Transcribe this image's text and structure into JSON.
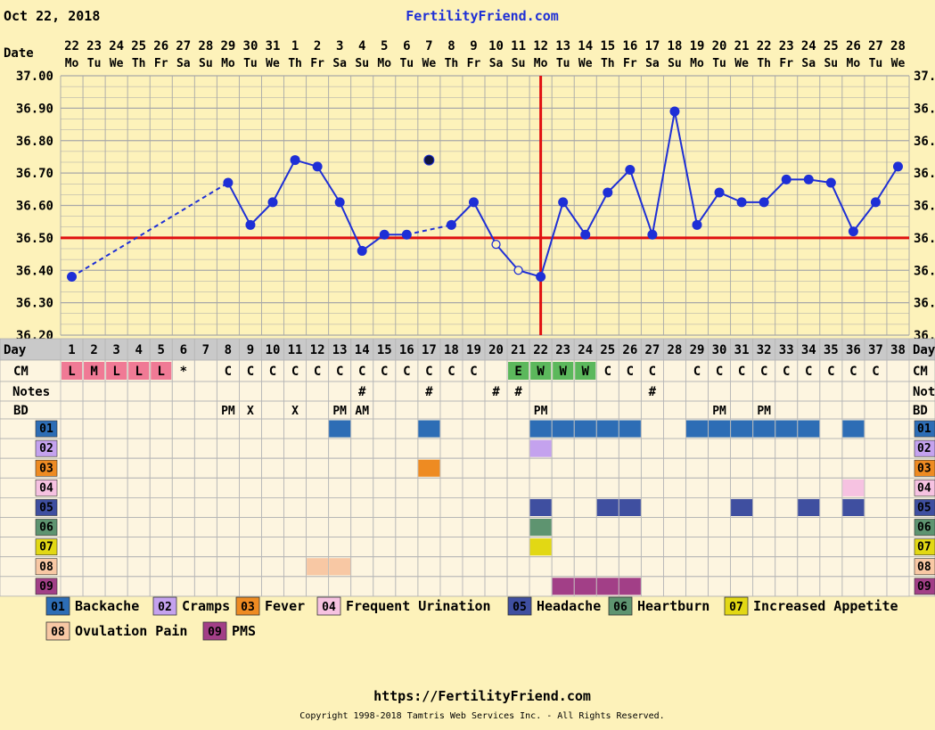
{
  "header": {
    "start_date": "Oct 22, 2018",
    "site_title": "FertilityFriend.com"
  },
  "footer": {
    "url": "https://FertilityFriend.com",
    "copyright": "Copyright 1998-2018 Tamtris Web Services Inc. - All Rights Reserved."
  },
  "row_labels": {
    "date": "Date",
    "day": "Day",
    "cm": "CM",
    "notes": "Notes",
    "bd": "BD"
  },
  "colors": {
    "background": "#fdf2ba",
    "temp_line": "#1e2fd6",
    "coverline": "#e01010",
    "ovulation_line": "#e01010",
    "grid": "#999999"
  },
  "chart_data": {
    "type": "line",
    "title": "",
    "ylabel": "",
    "ylim": [
      36.2,
      37.0
    ],
    "y_ticks": [
      "37.00",
      "36.90",
      "36.80",
      "36.70",
      "36.60",
      "36.50",
      "36.40",
      "36.30",
      "36.20"
    ],
    "y_ticks_right_visible": [
      "37.",
      "36.",
      "36.",
      "36.",
      "36.",
      "36.",
      "36.",
      "36.",
      "36."
    ],
    "grid": true,
    "coverline": 36.5,
    "ovulation_cycle_day": 22,
    "dates": [
      "22",
      "23",
      "24",
      "25",
      "26",
      "27",
      "28",
      "29",
      "30",
      "31",
      "1",
      "2",
      "3",
      "4",
      "5",
      "6",
      "7",
      "8",
      "9",
      "10",
      "11",
      "12",
      "13",
      "14",
      "15",
      "16",
      "17",
      "18",
      "19",
      "20",
      "21",
      "22",
      "23",
      "24",
      "25",
      "26",
      "27",
      "28"
    ],
    "weekdays": [
      "Mo",
      "Tu",
      "We",
      "Th",
      "Fr",
      "Sa",
      "Su",
      "Mo",
      "Tu",
      "We",
      "Th",
      "Fr",
      "Sa",
      "Su",
      "Mo",
      "Tu",
      "We",
      "Th",
      "Fr",
      "Sa",
      "Su",
      "Mo",
      "Tu",
      "We",
      "Th",
      "Fr",
      "Sa",
      "Su",
      "Mo",
      "Tu",
      "We",
      "Th",
      "Fr",
      "Sa",
      "Su",
      "Mo",
      "Tu",
      "We"
    ],
    "cycle_days": [
      "1",
      "2",
      "3",
      "4",
      "5",
      "6",
      "7",
      "8",
      "9",
      "10",
      "11",
      "12",
      "13",
      "14",
      "15",
      "16",
      "17",
      "18",
      "19",
      "20",
      "21",
      "22",
      "23",
      "24",
      "25",
      "26",
      "27",
      "28",
      "29",
      "30",
      "31",
      "32",
      "33",
      "34",
      "35",
      "36",
      "37",
      "38"
    ],
    "temps": [
      36.38,
      null,
      null,
      null,
      null,
      null,
      null,
      36.67,
      36.54,
      36.61,
      36.74,
      36.72,
      36.61,
      36.46,
      36.51,
      36.51,
      36.74,
      36.54,
      36.61,
      36.48,
      36.4,
      36.38,
      36.61,
      36.51,
      36.64,
      36.71,
      36.51,
      36.89,
      36.54,
      36.64,
      36.61,
      36.61,
      36.68,
      36.68,
      36.67,
      36.52,
      36.61,
      36.72
    ],
    "discarded_days": [
      17
    ],
    "open_marker_days": [
      20,
      21
    ],
    "dashed_segments": [
      [
        1,
        8
      ],
      [
        16,
        18
      ]
    ],
    "cm": [
      "L",
      "M",
      "L",
      "L",
      "L",
      "*",
      "",
      "C",
      "C",
      "C",
      "C",
      "C",
      "C",
      "C",
      "C",
      "C",
      "C",
      "C",
      "C",
      "",
      "E",
      "W",
      "W",
      "W",
      "C",
      "C",
      "C",
      "",
      "C",
      "C",
      "C",
      "C",
      "C",
      "C",
      "C",
      "C",
      "C",
      ""
    ],
    "cm_colors": {
      "L": "#f07a95",
      "M": "#f07a95",
      "E": "#5cb85c",
      "W": "#5cb85c"
    },
    "notes": [
      "",
      "",
      "",
      "",
      "",
      "",
      "",
      "",
      "",
      "",
      "",
      "",
      "",
      "#",
      "",
      "",
      "#",
      "",
      "",
      "#",
      "#",
      "",
      "",
      "",
      "",
      "",
      "#",
      "",
      "",
      "",
      "",
      "",
      "",
      "",
      "",
      "",
      "",
      ""
    ],
    "bd": [
      "",
      "",
      "",
      "",
      "",
      "",
      "",
      "PM",
      "X",
      "",
      "X",
      "",
      "PM",
      "AM",
      "",
      "",
      "",
      "",
      "",
      "",
      "",
      "PM",
      "",
      "",
      "",
      "",
      "",
      "",
      "",
      "PM",
      "",
      "PM",
      "",
      "",
      "",
      "",
      "",
      ""
    ],
    "symptoms": [
      {
        "code": "01",
        "name": "Backache",
        "color": "#2d6db5",
        "days": [
          13,
          17,
          22,
          23,
          24,
          25,
          26,
          29,
          30,
          31,
          32,
          33,
          34,
          36
        ]
      },
      {
        "code": "02",
        "name": "Cramps",
        "color": "#c4a2ee",
        "days": [
          22
        ]
      },
      {
        "code": "03",
        "name": "Fever",
        "color": "#ee8b22",
        "days": [
          17
        ]
      },
      {
        "code": "04",
        "name": "Frequent Urination",
        "color": "#f6c2e1",
        "days": [
          36
        ]
      },
      {
        "code": "05",
        "name": "Headache",
        "color": "#3f4fa0",
        "days": [
          22,
          25,
          26,
          31,
          34,
          36
        ]
      },
      {
        "code": "06",
        "name": "Heartburn",
        "color": "#5e9470",
        "days": [
          22
        ]
      },
      {
        "code": "07",
        "name": "Increased Appetite",
        "color": "#e2d814",
        "days": [
          22
        ]
      },
      {
        "code": "08",
        "name": "Ovulation Pain",
        "color": "#f8c8a4",
        "days": [
          12,
          13
        ]
      },
      {
        "code": "09",
        "name": "PMS",
        "color": "#a23f87",
        "days": [
          23,
          24,
          25,
          26
        ]
      }
    ]
  }
}
